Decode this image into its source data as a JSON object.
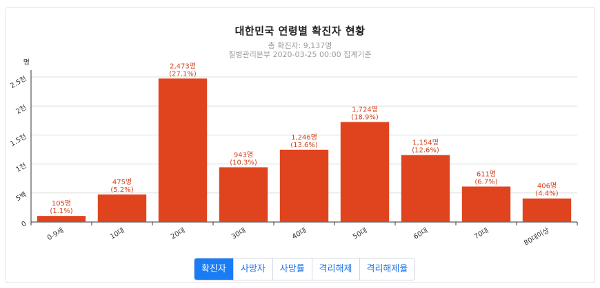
{
  "header": {
    "title": "대한민국 연령별 확진자 현황",
    "subtitle_total": "총 확진자: 9,137명",
    "subtitle_source": "질병관리본부 2020-03-25 00:00 집계기준"
  },
  "tabs": [
    {
      "label": "확진자",
      "active": true
    },
    {
      "label": "사망자",
      "active": false
    },
    {
      "label": "사망률",
      "active": false
    },
    {
      "label": "격리해제",
      "active": false
    },
    {
      "label": "격리해제율",
      "active": false
    }
  ],
  "colors": {
    "bar": "#e0441f",
    "label": "#d3411c",
    "active_tab": "#1a7cf5"
  },
  "chart_data": {
    "type": "bar",
    "title": "대한민국 연령별 확진자 현황",
    "ylabel": "명",
    "ylim": [
      0,
      2500
    ],
    "y_ticks": [
      0,
      500,
      1000,
      1500,
      2000,
      2500
    ],
    "y_tick_labels": [
      "0",
      "5백",
      "1천",
      "1.5천",
      "2천",
      "2.5천"
    ],
    "grid": true,
    "categories": [
      "0-9세",
      "10대",
      "20대",
      "30대",
      "40대",
      "50대",
      "60대",
      "70대",
      "80대이상"
    ],
    "values": [
      105,
      475,
      2473,
      943,
      1246,
      1724,
      1154,
      611,
      406
    ],
    "value_labels": [
      "105명",
      "475명",
      "2,473명",
      "943명",
      "1,246명",
      "1,724명",
      "1,154명",
      "611명",
      "406명"
    ],
    "percent_labels": [
      "(1.1%)",
      "(5.2%)",
      "(27.1%)",
      "(10.3%)",
      "(13.6%)",
      "(18.9%)",
      "(12.6%)",
      "(6.7%)",
      "(4.4%)"
    ]
  }
}
